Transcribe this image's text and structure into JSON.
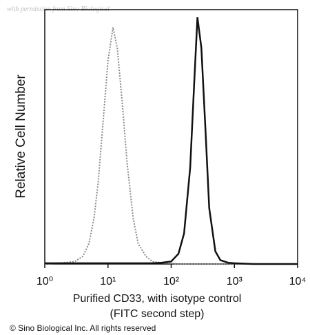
{
  "chart_data": {
    "type": "line",
    "watermark": "with permission from Sino Biological",
    "xlabel": [
      "Purified CD33, with isotype control",
      "(FITC second step)"
    ],
    "ylabel": "Relative Cell Number",
    "footer": "© Sino Biological Inc. All rights reserved",
    "xscale": "log",
    "xlim": [
      1,
      10000
    ],
    "ylim": [
      0,
      100
    ],
    "xticks": [
      {
        "value": 1,
        "label": "10⁰"
      },
      {
        "value": 10,
        "label": "10¹"
      },
      {
        "value": 100,
        "label": "10²"
      },
      {
        "value": 1000,
        "label": "10³"
      },
      {
        "value": 10000,
        "label": "10⁴"
      }
    ],
    "x": [
      1,
      2,
      3,
      4,
      5,
      6,
      7,
      8,
      10,
      12,
      14,
      17,
      20,
      25,
      30,
      40,
      50,
      70,
      100,
      130,
      160,
      200,
      230,
      260,
      300,
      350,
      400,
      500,
      600,
      800,
      1000,
      2000,
      5000,
      10000
    ],
    "series": [
      {
        "color": "#8a8a8a",
        "dash": true,
        "values": [
          0,
          0.5,
          1,
          3,
          8,
          18,
          32,
          50,
          80,
          93,
          85,
          62,
          40,
          18,
          8,
          3,
          1,
          0.5,
          0.3,
          0,
          0,
          0,
          0,
          0,
          0,
          0,
          0,
          0,
          0,
          0,
          0,
          0,
          0,
          0
        ]
      },
      {
        "color": "#111111",
        "dash": false,
        "values": [
          0.3,
          0.3,
          0.3,
          0.3,
          0.3,
          0.3,
          0.3,
          0.3,
          0.3,
          0.3,
          0.3,
          0.3,
          0.3,
          0.3,
          0.3,
          0.3,
          0.3,
          0.5,
          1,
          4,
          12,
          38,
          70,
          97,
          85,
          52,
          22,
          5,
          1.5,
          0.5,
          0.3,
          0,
          0,
          0
        ]
      }
    ]
  }
}
